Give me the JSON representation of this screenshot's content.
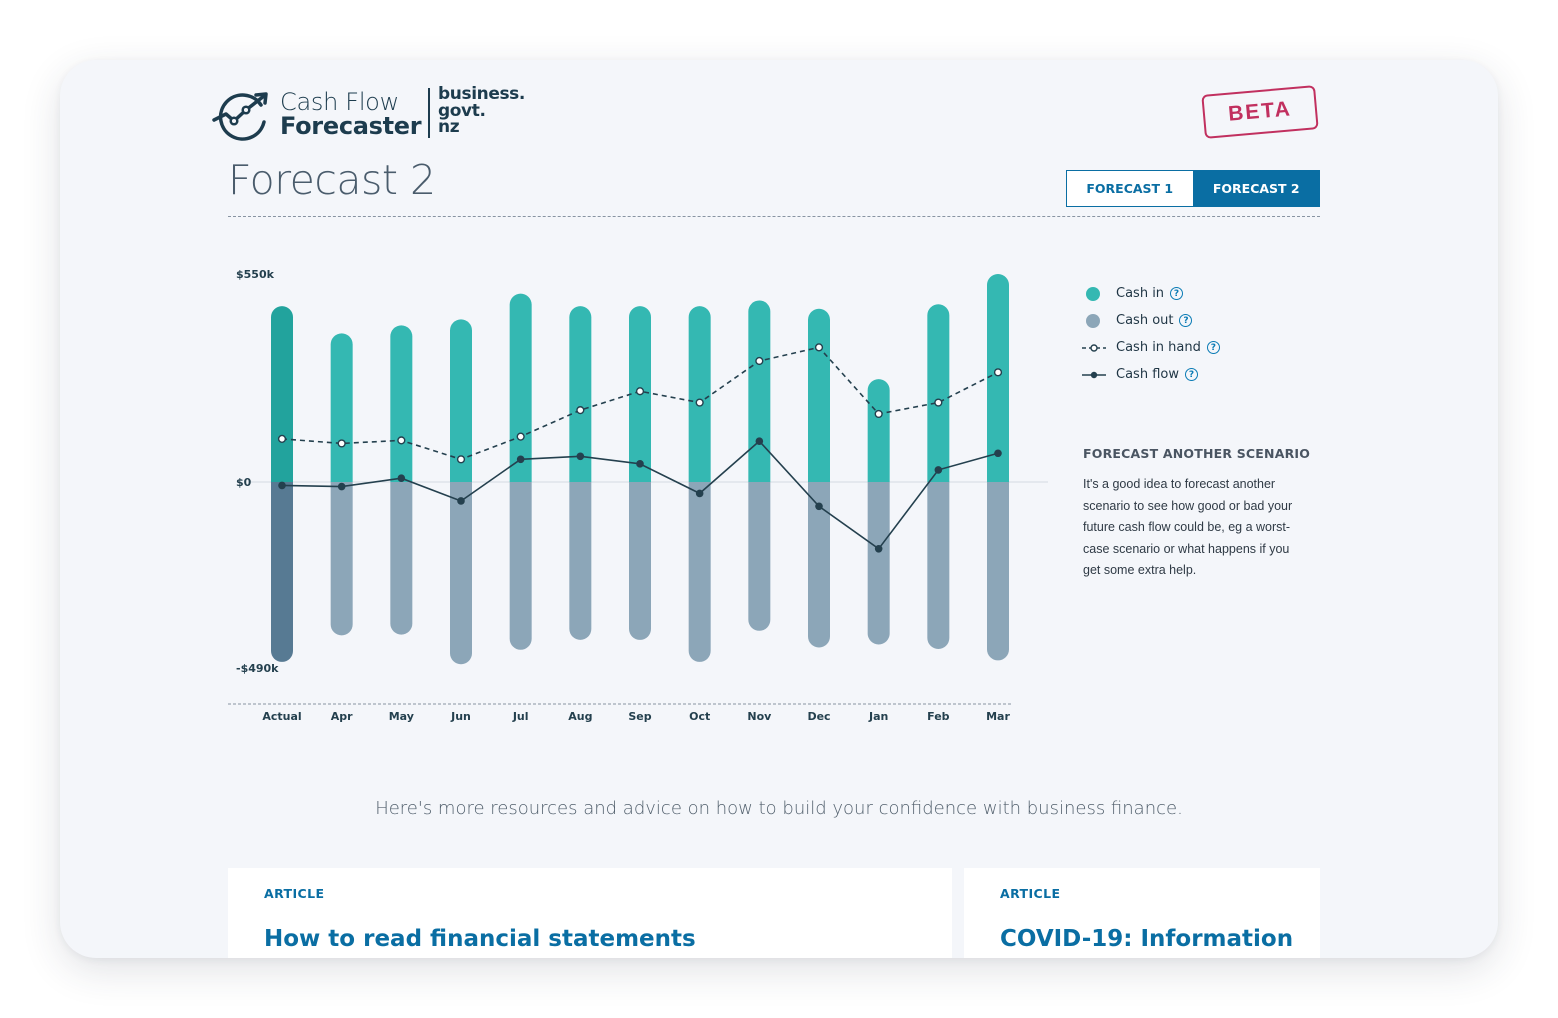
{
  "brand": {
    "line1": "Cash Flow",
    "line2": "Forecaster",
    "gov": "business.\ngovt.\nnz",
    "badge": "BETA"
  },
  "page": {
    "title": "Forecast 2"
  },
  "tabs": [
    {
      "label": "FORECAST 1",
      "active": false
    },
    {
      "label": "FORECAST 2",
      "active": true
    }
  ],
  "colors": {
    "cash_in": "#34b8b2",
    "cash_in_actual": "#22a39d",
    "cash_out": "#8ca6b8",
    "cash_out_actual": "#577a93",
    "cash_flow": "#24404e",
    "accent": "#0a6ea3",
    "beta": "#c1305f"
  },
  "legend": [
    {
      "label": "Cash in",
      "symbol": "dot",
      "color": "#34b8b2"
    },
    {
      "label": "Cash out",
      "symbol": "dot",
      "color": "#8ca6b8"
    },
    {
      "label": "Cash in hand",
      "symbol": "dashed-line-open-dot"
    },
    {
      "label": "Cash flow",
      "symbol": "solid-line-dot"
    }
  ],
  "help_icon": "question-circle-icon",
  "chart_data": {
    "type": "bar",
    "categories": [
      "Actual",
      "Apr",
      "May",
      "Jun",
      "Jul",
      "Aug",
      "Sep",
      "Oct",
      "Nov",
      "Dec",
      "Jan",
      "Feb",
      "Mar"
    ],
    "y_tick_labels": [
      "$550k",
      "$0",
      "-$490k"
    ],
    "ylim": [
      -490,
      550
    ],
    "units": "$k",
    "grid": false,
    "legend_position": "right",
    "series": [
      {
        "name": "Cash in",
        "type": "bar",
        "values": [
          465,
          393,
          414,
          430,
          498,
          465,
          465,
          465,
          480,
          458,
          272,
          470,
          550
        ]
      },
      {
        "name": "Cash out",
        "type": "bar",
        "values": [
          -474,
          -404,
          -402,
          -480,
          -442,
          -416,
          -416,
          -474,
          -392,
          -436,
          -428,
          -440,
          -470
        ]
      },
      {
        "name": "Cash in hand",
        "type": "line",
        "style": "dashed",
        "values": [
          114,
          102,
          110,
          60,
          120,
          190,
          240,
          210,
          320,
          356,
          180,
          210,
          290
        ]
      },
      {
        "name": "Cash flow",
        "type": "line",
        "style": "solid",
        "values": [
          -9,
          -12,
          10,
          -50,
          60,
          68,
          48,
          -30,
          108,
          -64,
          -176,
          32,
          76
        ]
      }
    ]
  },
  "sidebar": {
    "heading": "FORECAST ANOTHER SCENARIO",
    "body": "It's a good idea to forecast another scenario to see how good or bad your future cash flow could be, eg a worst-case scenario or what happens if you get some extra help."
  },
  "resources": {
    "intro": "Here's more resources and advice on how to build your confidence with business finance.",
    "cards": [
      {
        "kicker": "ARTICLE",
        "title": "How to read financial statements"
      },
      {
        "kicker": "ARTICLE",
        "title": "COVID-19: Information"
      }
    ]
  }
}
